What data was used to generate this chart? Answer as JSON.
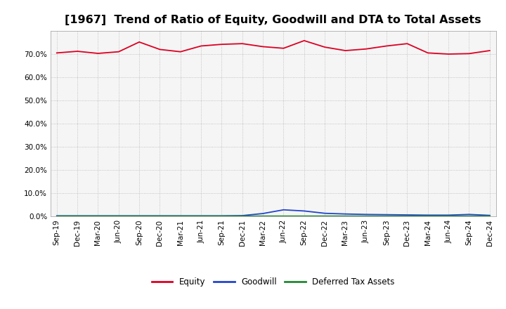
{
  "title": "[1967]  Trend of Ratio of Equity, Goodwill and DTA to Total Assets",
  "x_labels": [
    "Sep-19",
    "Dec-19",
    "Mar-20",
    "Jun-20",
    "Sep-20",
    "Dec-20",
    "Mar-21",
    "Jun-21",
    "Sep-21",
    "Dec-21",
    "Mar-22",
    "Jun-22",
    "Sep-22",
    "Dec-22",
    "Mar-23",
    "Jun-23",
    "Sep-23",
    "Dec-23",
    "Mar-24",
    "Jun-24",
    "Sep-24",
    "Dec-24"
  ],
  "equity": [
    70.5,
    71.2,
    70.3,
    71.0,
    75.2,
    72.0,
    71.0,
    73.5,
    74.2,
    74.5,
    73.2,
    72.5,
    75.8,
    73.0,
    71.5,
    72.2,
    73.5,
    74.5,
    70.5,
    70.0,
    70.2,
    71.5
  ],
  "goodwill": [
    0.2,
    0.2,
    0.2,
    0.2,
    0.2,
    0.2,
    0.2,
    0.2,
    0.2,
    0.3,
    1.2,
    2.8,
    2.3,
    1.3,
    1.0,
    0.8,
    0.7,
    0.6,
    0.5,
    0.5,
    0.8,
    0.4
  ],
  "dta": [
    0.3,
    0.3,
    0.3,
    0.3,
    0.3,
    0.3,
    0.3,
    0.3,
    0.3,
    0.3,
    0.3,
    0.3,
    0.3,
    0.3,
    0.3,
    0.3,
    0.3,
    0.3,
    0.3,
    0.3,
    0.3,
    0.3
  ],
  "equity_color": "#dd0022",
  "goodwill_color": "#2244cc",
  "dta_color": "#228833",
  "bg_color": "#ffffff",
  "plot_bg_color": "#f5f5f5",
  "grid_color": "#999999",
  "ylim": [
    0,
    80
  ],
  "yticks": [
    0,
    10,
    20,
    30,
    40,
    50,
    60,
    70
  ],
  "legend_labels": [
    "Equity",
    "Goodwill",
    "Deferred Tax Assets"
  ],
  "title_fontsize": 11.5,
  "tick_fontsize": 7.5,
  "legend_fontsize": 8.5
}
